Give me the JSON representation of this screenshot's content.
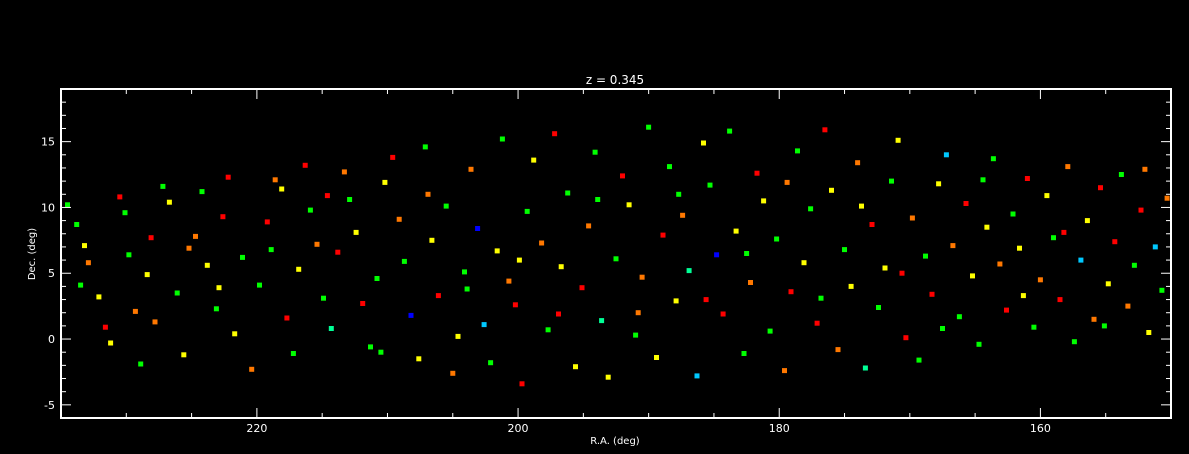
{
  "chart_data": {
    "type": "scatter",
    "title": "z = 0.345",
    "xlabel": "R.A. (deg)",
    "ylabel": "Dec. (deg)",
    "xlim": [
      235,
      150
    ],
    "ylim": [
      -6,
      19
    ],
    "x_ticks": [
      220,
      200,
      180,
      160
    ],
    "y_ticks": [
      -5,
      0,
      5,
      10,
      15
    ],
    "x_tick_labels": [
      "220",
      "200",
      "180",
      "160"
    ],
    "y_tick_labels": [
      "-5",
      "0",
      "5",
      "10",
      "15"
    ],
    "grid": false,
    "legend": "none",
    "background_color": "#000000",
    "axis_color": "#ffffff",
    "marker": "square",
    "color_palette": [
      "#ff0000",
      "#ff7800",
      "#ffff00",
      "#00ff00",
      "#00ff96",
      "#00c8ff",
      "#0000ff"
    ],
    "points": [
      {
        "ra": 234.5,
        "dec": 10.2,
        "c": 3
      },
      {
        "ra": 233.8,
        "dec": 8.7,
        "c": 3
      },
      {
        "ra": 233.2,
        "dec": 7.1,
        "c": 2
      },
      {
        "ra": 232.9,
        "dec": 5.8,
        "c": 1
      },
      {
        "ra": 232.1,
        "dec": 3.2,
        "c": 2
      },
      {
        "ra": 231.6,
        "dec": 0.9,
        "c": 0
      },
      {
        "ra": 231.2,
        "dec": -0.3,
        "c": 2
      },
      {
        "ra": 230.5,
        "dec": 10.8,
        "c": 0
      },
      {
        "ra": 230.1,
        "dec": 9.6,
        "c": 3
      },
      {
        "ra": 229.8,
        "dec": 6.4,
        "c": 3
      },
      {
        "ra": 229.3,
        "dec": 2.1,
        "c": 1
      },
      {
        "ra": 228.9,
        "dec": -1.9,
        "c": 3
      },
      {
        "ra": 228.4,
        "dec": 4.9,
        "c": 2
      },
      {
        "ra": 227.8,
        "dec": 1.3,
        "c": 1
      },
      {
        "ra": 227.2,
        "dec": 11.6,
        "c": 3
      },
      {
        "ra": 226.7,
        "dec": 10.4,
        "c": 2
      },
      {
        "ra": 226.1,
        "dec": 3.5,
        "c": 3
      },
      {
        "ra": 225.6,
        "dec": -1.2,
        "c": 2
      },
      {
        "ra": 225.2,
        "dec": 6.9,
        "c": 1
      },
      {
        "ra": 224.7,
        "dec": 7.8,
        "c": 1
      },
      {
        "ra": 224.2,
        "dec": 11.2,
        "c": 3
      },
      {
        "ra": 223.8,
        "dec": 5.6,
        "c": 2
      },
      {
        "ra": 223.1,
        "dec": 2.3,
        "c": 3
      },
      {
        "ra": 222.6,
        "dec": 9.3,
        "c": 0
      },
      {
        "ra": 222.2,
        "dec": 12.3,
        "c": 0
      },
      {
        "ra": 221.7,
        "dec": 0.4,
        "c": 2
      },
      {
        "ra": 221.1,
        "dec": 6.2,
        "c": 3
      },
      {
        "ra": 220.4,
        "dec": -2.3,
        "c": 1
      },
      {
        "ra": 219.8,
        "dec": 4.1,
        "c": 3
      },
      {
        "ra": 219.2,
        "dec": 8.9,
        "c": 0
      },
      {
        "ra": 218.6,
        "dec": 12.1,
        "c": 1
      },
      {
        "ra": 218.1,
        "dec": 11.4,
        "c": 2
      },
      {
        "ra": 217.7,
        "dec": 1.6,
        "c": 0
      },
      {
        "ra": 217.2,
        "dec": -1.1,
        "c": 3
      },
      {
        "ra": 216.8,
        "dec": 5.3,
        "c": 2
      },
      {
        "ra": 216.3,
        "dec": 13.2,
        "c": 0
      },
      {
        "ra": 215.9,
        "dec": 9.8,
        "c": 3
      },
      {
        "ra": 215.4,
        "dec": 7.2,
        "c": 1
      },
      {
        "ra": 214.9,
        "dec": 3.1,
        "c": 3
      },
      {
        "ra": 214.3,
        "dec": 0.8,
        "c": 4
      },
      {
        "ra": 213.8,
        "dec": 6.6,
        "c": 0
      },
      {
        "ra": 213.3,
        "dec": 12.7,
        "c": 1
      },
      {
        "ra": 212.9,
        "dec": 10.6,
        "c": 3
      },
      {
        "ra": 212.4,
        "dec": 8.1,
        "c": 2
      },
      {
        "ra": 211.9,
        "dec": 2.7,
        "c": 0
      },
      {
        "ra": 211.3,
        "dec": -0.6,
        "c": 3
      },
      {
        "ra": 210.8,
        "dec": 4.6,
        "c": 3
      },
      {
        "ra": 210.2,
        "dec": 11.9,
        "c": 2
      },
      {
        "ra": 209.6,
        "dec": 13.8,
        "c": 0
      },
      {
        "ra": 209.1,
        "dec": 9.1,
        "c": 1
      },
      {
        "ra": 208.7,
        "dec": 5.9,
        "c": 3
      },
      {
        "ra": 208.2,
        "dec": 1.8,
        "c": 6
      },
      {
        "ra": 207.6,
        "dec": -1.5,
        "c": 2
      },
      {
        "ra": 207.1,
        "dec": 14.6,
        "c": 3
      },
      {
        "ra": 206.6,
        "dec": 7.5,
        "c": 2
      },
      {
        "ra": 206.1,
        "dec": 3.3,
        "c": 0
      },
      {
        "ra": 205.5,
        "dec": 10.1,
        "c": 3
      },
      {
        "ra": 205.0,
        "dec": -2.6,
        "c": 1
      },
      {
        "ra": 204.6,
        "dec": 0.2,
        "c": 2
      },
      {
        "ra": 204.1,
        "dec": 5.1,
        "c": 3
      },
      {
        "ra": 203.6,
        "dec": 12.9,
        "c": 1
      },
      {
        "ra": 203.1,
        "dec": 8.4,
        "c": 6
      },
      {
        "ra": 202.6,
        "dec": 1.1,
        "c": 5
      },
      {
        "ra": 202.1,
        "dec": -1.8,
        "c": 3
      },
      {
        "ra": 201.6,
        "dec": 6.7,
        "c": 2
      },
      {
        "ra": 201.2,
        "dec": 15.2,
        "c": 3
      },
      {
        "ra": 200.7,
        "dec": 4.4,
        "c": 1
      },
      {
        "ra": 200.2,
        "dec": 2.6,
        "c": 0
      },
      {
        "ra": 199.7,
        "dec": -3.4,
        "c": 0
      },
      {
        "ra": 199.3,
        "dec": 9.7,
        "c": 3
      },
      {
        "ra": 198.8,
        "dec": 13.6,
        "c": 2
      },
      {
        "ra": 198.2,
        "dec": 7.3,
        "c": 1
      },
      {
        "ra": 197.7,
        "dec": 0.7,
        "c": 3
      },
      {
        "ra": 197.2,
        "dec": 15.6,
        "c": 0
      },
      {
        "ra": 196.7,
        "dec": 5.5,
        "c": 2
      },
      {
        "ra": 196.2,
        "dec": 11.1,
        "c": 3
      },
      {
        "ra": 195.6,
        "dec": -2.1,
        "c": 2
      },
      {
        "ra": 195.1,
        "dec": 3.9,
        "c": 0
      },
      {
        "ra": 194.6,
        "dec": 8.6,
        "c": 1
      },
      {
        "ra": 194.1,
        "dec": 14.2,
        "c": 3
      },
      {
        "ra": 193.6,
        "dec": 1.4,
        "c": 4
      },
      {
        "ra": 193.1,
        "dec": -2.9,
        "c": 2
      },
      {
        "ra": 192.5,
        "dec": 6.1,
        "c": 3
      },
      {
        "ra": 192.0,
        "dec": 12.4,
        "c": 0
      },
      {
        "ra": 191.5,
        "dec": 10.2,
        "c": 2
      },
      {
        "ra": 191.0,
        "dec": 0.3,
        "c": 3
      },
      {
        "ra": 190.5,
        "dec": 4.7,
        "c": 1
      },
      {
        "ra": 190.0,
        "dec": 16.1,
        "c": 3
      },
      {
        "ra": 189.4,
        "dec": -1.4,
        "c": 2
      },
      {
        "ra": 188.9,
        "dec": 7.9,
        "c": 0
      },
      {
        "ra": 188.4,
        "dec": 13.1,
        "c": 3
      },
      {
        "ra": 187.9,
        "dec": 2.9,
        "c": 2
      },
      {
        "ra": 187.4,
        "dec": 9.4,
        "c": 1
      },
      {
        "ra": 186.9,
        "dec": 5.2,
        "c": 4
      },
      {
        "ra": 186.3,
        "dec": -2.8,
        "c": 5
      },
      {
        "ra": 185.8,
        "dec": 14.9,
        "c": 2
      },
      {
        "ra": 185.3,
        "dec": 11.7,
        "c": 3
      },
      {
        "ra": 184.8,
        "dec": 6.4,
        "c": 6
      },
      {
        "ra": 184.3,
        "dec": 1.9,
        "c": 0
      },
      {
        "ra": 183.8,
        "dec": 15.8,
        "c": 3
      },
      {
        "ra": 183.3,
        "dec": 8.2,
        "c": 2
      },
      {
        "ra": 182.7,
        "dec": -1.1,
        "c": 3
      },
      {
        "ra": 182.2,
        "dec": 4.3,
        "c": 1
      },
      {
        "ra": 181.7,
        "dec": 12.6,
        "c": 0
      },
      {
        "ra": 181.2,
        "dec": 10.5,
        "c": 2
      },
      {
        "ra": 180.7,
        "dec": 0.6,
        "c": 3
      },
      {
        "ra": 180.2,
        "dec": 7.6,
        "c": 3
      },
      {
        "ra": 179.6,
        "dec": -2.4,
        "c": 1
      },
      {
        "ra": 179.1,
        "dec": 3.6,
        "c": 0
      },
      {
        "ra": 178.6,
        "dec": 14.3,
        "c": 3
      },
      {
        "ra": 178.1,
        "dec": 5.8,
        "c": 2
      },
      {
        "ra": 177.6,
        "dec": 9.9,
        "c": 3
      },
      {
        "ra": 177.1,
        "dec": 1.2,
        "c": 0
      },
      {
        "ra": 176.5,
        "dec": 15.9,
        "c": 0
      },
      {
        "ra": 176.0,
        "dec": 11.3,
        "c": 2
      },
      {
        "ra": 175.5,
        "dec": -0.8,
        "c": 1
      },
      {
        "ra": 175.0,
        "dec": 6.8,
        "c": 3
      },
      {
        "ra": 174.5,
        "dec": 4.0,
        "c": 2
      },
      {
        "ra": 174.0,
        "dec": 13.4,
        "c": 1
      },
      {
        "ra": 173.4,
        "dec": -2.2,
        "c": 4
      },
      {
        "ra": 172.9,
        "dec": 8.7,
        "c": 0
      },
      {
        "ra": 172.4,
        "dec": 2.4,
        "c": 3
      },
      {
        "ra": 171.9,
        "dec": 5.4,
        "c": 2
      },
      {
        "ra": 171.4,
        "dec": 12.0,
        "c": 3
      },
      {
        "ra": 170.9,
        "dec": 15.1,
        "c": 2
      },
      {
        "ra": 170.3,
        "dec": 0.1,
        "c": 0
      },
      {
        "ra": 169.8,
        "dec": 9.2,
        "c": 1
      },
      {
        "ra": 169.3,
        "dec": -1.6,
        "c": 3
      },
      {
        "ra": 168.8,
        "dec": 6.3,
        "c": 3
      },
      {
        "ra": 168.3,
        "dec": 3.4,
        "c": 0
      },
      {
        "ra": 167.8,
        "dec": 11.8,
        "c": 2
      },
      {
        "ra": 167.2,
        "dec": 14.0,
        "c": 5
      },
      {
        "ra": 166.7,
        "dec": 7.1,
        "c": 1
      },
      {
        "ra": 166.2,
        "dec": 1.7,
        "c": 3
      },
      {
        "ra": 165.7,
        "dec": 10.3,
        "c": 0
      },
      {
        "ra": 165.2,
        "dec": 4.8,
        "c": 2
      },
      {
        "ra": 164.7,
        "dec": -0.4,
        "c": 3
      },
      {
        "ra": 164.1,
        "dec": 8.5,
        "c": 2
      },
      {
        "ra": 163.6,
        "dec": 13.7,
        "c": 3
      },
      {
        "ra": 163.1,
        "dec": 5.7,
        "c": 1
      },
      {
        "ra": 162.6,
        "dec": 2.2,
        "c": 0
      },
      {
        "ra": 162.1,
        "dec": 9.5,
        "c": 3
      },
      {
        "ra": 161.6,
        "dec": 6.9,
        "c": 2
      },
      {
        "ra": 161.0,
        "dec": 12.2,
        "c": 0
      },
      {
        "ra": 160.5,
        "dec": 0.9,
        "c": 3
      },
      {
        "ra": 160.0,
        "dec": 4.5,
        "c": 1
      },
      {
        "ra": 159.5,
        "dec": 10.9,
        "c": 2
      },
      {
        "ra": 159.0,
        "dec": 7.7,
        "c": 3
      },
      {
        "ra": 158.5,
        "dec": 3.0,
        "c": 0
      },
      {
        "ra": 157.9,
        "dec": 13.1,
        "c": 1
      },
      {
        "ra": 157.4,
        "dec": -0.2,
        "c": 3
      },
      {
        "ra": 156.9,
        "dec": 6.0,
        "c": 5
      },
      {
        "ra": 156.4,
        "dec": 9.0,
        "c": 2
      },
      {
        "ra": 155.9,
        "dec": 1.5,
        "c": 1
      },
      {
        "ra": 155.4,
        "dec": 11.5,
        "c": 0
      },
      {
        "ra": 154.8,
        "dec": 4.2,
        "c": 2
      },
      {
        "ra": 154.3,
        "dec": 7.4,
        "c": 0
      },
      {
        "ra": 153.8,
        "dec": 12.5,
        "c": 3
      },
      {
        "ra": 153.3,
        "dec": 2.5,
        "c": 1
      },
      {
        "ra": 152.8,
        "dec": 5.6,
        "c": 3
      },
      {
        "ra": 152.3,
        "dec": 9.8,
        "c": 0
      },
      {
        "ra": 151.7,
        "dec": 0.5,
        "c": 2
      },
      {
        "ra": 151.2,
        "dec": 7.0,
        "c": 5
      },
      {
        "ra": 150.7,
        "dec": 3.7,
        "c": 3
      },
      {
        "ra": 150.3,
        "dec": 10.7,
        "c": 1
      },
      {
        "ra": 233.5,
        "dec": 4.1,
        "c": 3
      },
      {
        "ra": 228.1,
        "dec": 7.7,
        "c": 0
      },
      {
        "ra": 222.9,
        "dec": 3.9,
        "c": 2
      },
      {
        "ra": 218.9,
        "dec": 6.8,
        "c": 3
      },
      {
        "ra": 214.6,
        "dec": 10.9,
        "c": 0
      },
      {
        "ra": 210.5,
        "dec": -1.0,
        "c": 3
      },
      {
        "ra": 206.9,
        "dec": 11.0,
        "c": 1
      },
      {
        "ra": 203.9,
        "dec": 3.8,
        "c": 3
      },
      {
        "ra": 199.9,
        "dec": 6.0,
        "c": 2
      },
      {
        "ra": 196.9,
        "dec": 1.9,
        "c": 0
      },
      {
        "ra": 193.9,
        "dec": 10.6,
        "c": 3
      },
      {
        "ra": 190.8,
        "dec": 2.0,
        "c": 1
      },
      {
        "ra": 187.7,
        "dec": 11.0,
        "c": 3
      },
      {
        "ra": 185.6,
        "dec": 3.0,
        "c": 0
      },
      {
        "ra": 182.5,
        "dec": 6.5,
        "c": 3
      },
      {
        "ra": 179.4,
        "dec": 11.9,
        "c": 1
      },
      {
        "ra": 176.8,
        "dec": 3.1,
        "c": 3
      },
      {
        "ra": 173.7,
        "dec": 10.1,
        "c": 2
      },
      {
        "ra": 170.6,
        "dec": 5.0,
        "c": 0
      },
      {
        "ra": 167.5,
        "dec": 0.8,
        "c": 3
      },
      {
        "ra": 164.4,
        "dec": 12.1,
        "c": 3
      },
      {
        "ra": 161.3,
        "dec": 3.3,
        "c": 2
      },
      {
        "ra": 158.2,
        "dec": 8.1,
        "c": 0
      },
      {
        "ra": 155.1,
        "dec": 1.0,
        "c": 3
      },
      {
        "ra": 152.0,
        "dec": 12.9,
        "c": 1
      }
    ]
  }
}
